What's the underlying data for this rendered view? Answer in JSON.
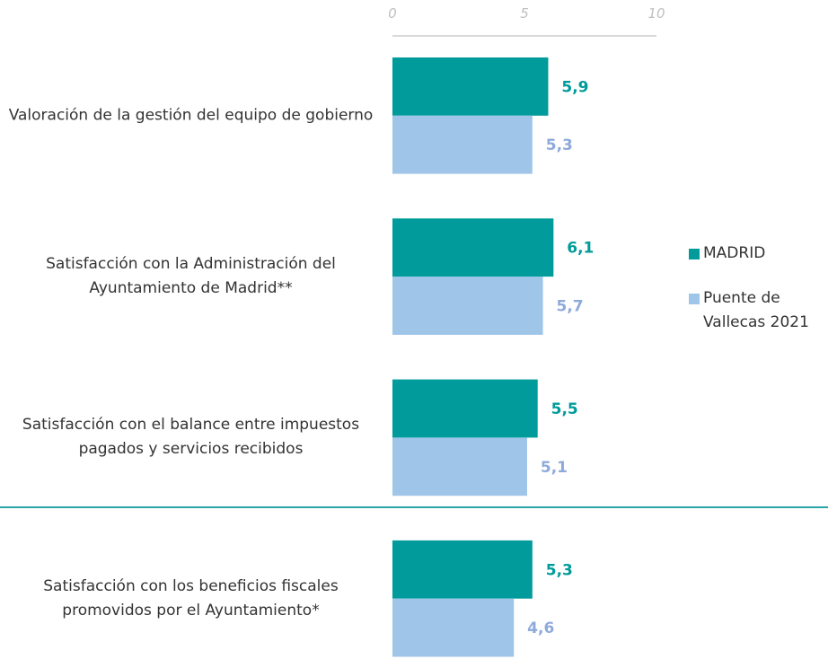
{
  "chart_data": {
    "type": "bar",
    "orientation": "horizontal",
    "categories": [
      "Valoración de la gestión del equipo de gobierno",
      "Satisfacción con la Administración del Ayuntamiento de Madrid**",
      "Satisfacción con el balance entre impuestos pagados y servicios recibidos",
      "Satisfacción con los beneficios fiscales promovidos por el Ayuntamiento*"
    ],
    "series": [
      {
        "name": "MADRID",
        "color": "#009b9a",
        "label_color": "#009b9a",
        "values": [
          5.9,
          6.1,
          5.5,
          5.3
        ],
        "value_labels": [
          "5,9",
          "6,1",
          "5,5",
          "5,3"
        ]
      },
      {
        "name": "Puente de Vallecas 2021",
        "color": "#9fc5e8",
        "label_color": "#8eaadb",
        "values": [
          5.3,
          5.7,
          5.1,
          4.6
        ],
        "value_labels": [
          "5,3",
          "5,7",
          "5,1",
          "4,6"
        ]
      }
    ],
    "xlim": [
      0,
      10
    ],
    "xticks": [
      0,
      5,
      10
    ],
    "grid": false,
    "legend": "right"
  }
}
